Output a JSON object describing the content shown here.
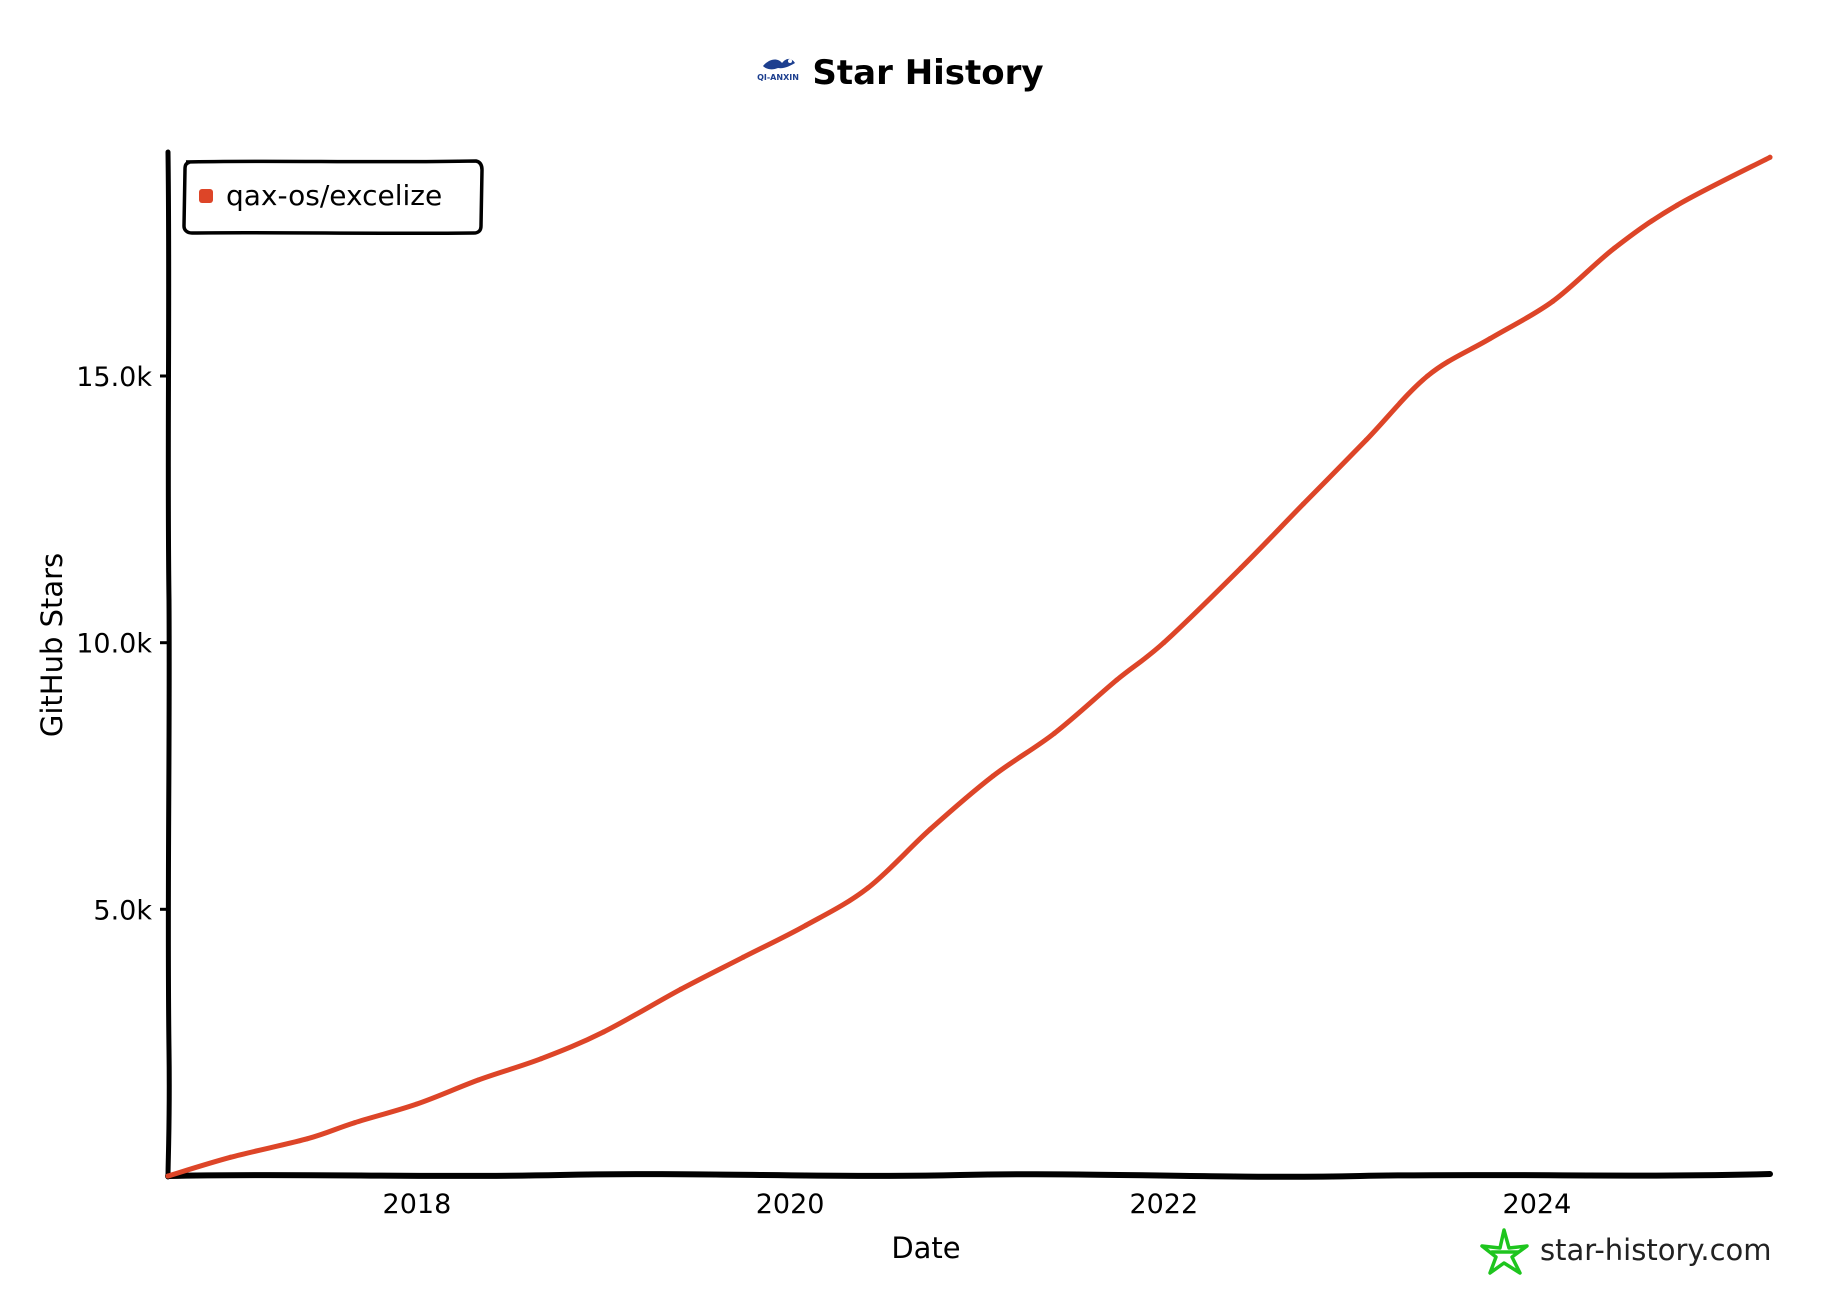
{
  "chart_data": {
    "type": "line",
    "title": "Star History",
    "xlabel": "Date",
    "ylabel": "GitHub Stars",
    "x_tick_labels": [
      "2018",
      "2020",
      "2022",
      "2024"
    ],
    "y_tick_labels": [
      "5.0k",
      "10.0k",
      "15.0k"
    ],
    "xlim": [
      "2016-09-01",
      "2025-04-01"
    ],
    "ylim": [
      0,
      19200
    ],
    "grid": false,
    "legend_position": "top-left",
    "series": [
      {
        "name": "qax-os/excelize",
        "color": "#dd4528",
        "x": [
          "2016-09-01",
          "2017-01-01",
          "2017-06-01",
          "2017-09-01",
          "2018-01-01",
          "2018-05-01",
          "2018-09-01",
          "2019-01-01",
          "2019-06-01",
          "2019-10-01",
          "2020-02-01",
          "2020-06-01",
          "2020-10-01",
          "2021-02-01",
          "2021-06-01",
          "2021-10-01",
          "2022-01-01",
          "2022-06-01",
          "2022-10-01",
          "2023-02-01",
          "2023-06-01",
          "2023-10-01",
          "2024-02-01",
          "2024-06-01",
          "2024-10-01",
          "2025-04-01"
        ],
        "values": [
          0,
          350,
          700,
          1000,
          1350,
          1800,
          2200,
          2700,
          3500,
          4100,
          4700,
          5400,
          6500,
          7500,
          8300,
          9300,
          10000,
          11400,
          12600,
          13800,
          15000,
          15700,
          16400,
          17400,
          18200,
          19100
        ]
      }
    ]
  },
  "logo": {
    "text": "QI-ANXIN"
  },
  "footer": {
    "text": "star-history.com",
    "icon": "star-icon",
    "icon_color": "#1ec51e"
  }
}
